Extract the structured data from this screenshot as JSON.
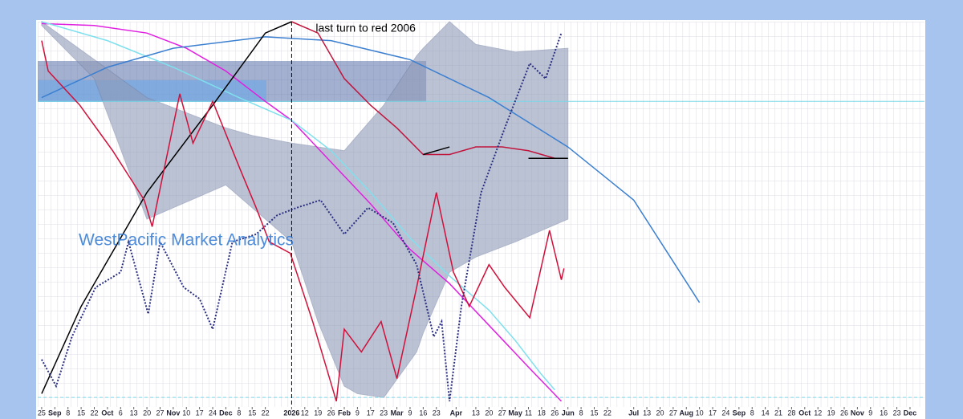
{
  "chart_data": {
    "type": "line",
    "watermark": "WestPacific Market Analytics",
    "annotation": {
      "text": "last turn to red 2006",
      "x": 19
    },
    "xlim": [
      -0.3,
      67.1
    ],
    "ylim": [
      -1.5,
      100
    ],
    "levels": [
      {
        "value": 79,
        "color": "#7ad8e8",
        "style": "solid"
      },
      {
        "value": 1,
        "color": "#7ad8e8",
        "style": "dashed"
      }
    ],
    "band": {
      "color": "#8f9bb8",
      "x": [
        0,
        4,
        8,
        14,
        16,
        19,
        21,
        23,
        24,
        26,
        28.5,
        29,
        31,
        33,
        36,
        40
      ],
      "upper": [
        100,
        90,
        80,
        72,
        70,
        68,
        67,
        66,
        70,
        78,
        91,
        93,
        100,
        94,
        92,
        93
      ],
      "lower": [
        99,
        85,
        48,
        57,
        51,
        42,
        21,
        4,
        2,
        1,
        13,
        18,
        34,
        38,
        42,
        48
      ]
    },
    "series": [
      {
        "color": "#e020e0",
        "style": "solid",
        "x": [
          0,
          4,
          8,
          11,
          14,
          17,
          19,
          22,
          25,
          28,
          31,
          34,
          37,
          39.5
        ],
        "values": [
          99.5,
          99,
          97,
          93,
          87,
          79,
          74,
          63,
          52,
          40,
          31,
          20,
          9,
          0
        ]
      },
      {
        "color": "#7fe0ee",
        "style": "solid",
        "x": [
          0,
          5,
          10,
          15,
          19,
          22,
          25,
          28,
          31,
          34,
          36,
          38,
          39
        ],
        "values": [
          100,
          95,
          88,
          80,
          74,
          66,
          55,
          43,
          33,
          24,
          16,
          7,
          3
        ]
      },
      {
        "color": "#3b7fd0",
        "style": "solid",
        "x": [
          0,
          5,
          10,
          17,
          22,
          28,
          34,
          40,
          45,
          50
        ],
        "values": [
          80,
          88,
          93,
          96,
          95,
          90,
          80,
          67,
          53,
          26
        ]
      },
      {
        "color": "#c0143c",
        "style": "solid",
        "x": [
          19,
          21,
          23,
          25,
          27,
          29,
          31,
          33,
          35,
          37,
          39,
          40
        ],
        "values": [
          100,
          97,
          85,
          78,
          72,
          65,
          65,
          67,
          67,
          66,
          64,
          64
        ]
      },
      {
        "color": "#000000",
        "style": "solid",
        "x": [
          0,
          3,
          8,
          13,
          17,
          19,
          24,
          29,
          30,
          31,
          35,
          37,
          39,
          40
        ],
        "values": [
          2,
          25,
          55,
          78,
          97,
          100,
          null,
          65,
          66,
          67,
          null,
          64,
          64,
          64
        ]
      },
      {
        "color": "#d0103a",
        "style": "solid",
        "x": [
          0,
          0.5,
          2.9,
          5.4,
          7.8,
          8.4,
          10.5,
          11.5,
          13,
          15.1,
          16.3,
          17.3,
          18.9,
          20.6,
          22.4,
          23,
          24.3,
          25.8,
          27,
          28.5,
          30,
          31.3,
          32.5,
          34,
          35.2,
          37.1,
          38.6,
          39.5,
          39.7
        ],
        "values": [
          95,
          87,
          78,
          66,
          53,
          46,
          81,
          68,
          79,
          61,
          51,
          42,
          39,
          21,
          0,
          19,
          13,
          21,
          6,
          30,
          55,
          34,
          25,
          36,
          30,
          22,
          45,
          32,
          35
        ]
      },
      {
        "color": "#2a2f80",
        "style": "dotted",
        "x": [
          0,
          1.1,
          2.3,
          4.1,
          6,
          6.6,
          8.1,
          9,
          10.8,
          12,
          13,
          14.5,
          16.3,
          17.9,
          19.4,
          21.2,
          23,
          24.8,
          26.7,
          28.5,
          29.8,
          30.4,
          31,
          31.9,
          33.4,
          35.2,
          37.1,
          38.3,
          39.5
        ],
        "values": [
          11,
          4,
          17,
          30,
          34,
          42,
          23,
          42,
          30,
          27,
          19,
          42,
          44,
          49,
          51,
          53,
          44,
          51,
          47,
          36,
          17,
          21,
          0,
          25,
          55,
          72,
          89,
          85,
          97
        ]
      }
    ],
    "xticks": [
      {
        "value": 0,
        "label": "25"
      },
      {
        "value": 1,
        "label": "Sep"
      },
      {
        "value": 2,
        "label": "8"
      },
      {
        "value": 3,
        "label": "15"
      },
      {
        "value": 4,
        "label": "22"
      },
      {
        "value": 5,
        "label": "Oct"
      },
      {
        "value": 6,
        "label": "6"
      },
      {
        "value": 7,
        "label": "13"
      },
      {
        "value": 8,
        "label": "20"
      },
      {
        "value": 9,
        "label": "27"
      },
      {
        "value": 10,
        "label": "Nov"
      },
      {
        "value": 11,
        "label": "10"
      },
      {
        "value": 12,
        "label": "17"
      },
      {
        "value": 13,
        "label": "24"
      },
      {
        "value": 14,
        "label": "Dec"
      },
      {
        "value": 15,
        "label": "8"
      },
      {
        "value": 16,
        "label": "15"
      },
      {
        "value": 17,
        "label": "22"
      },
      {
        "value": 19,
        "label": "2026"
      },
      {
        "value": 20,
        "label": "12"
      },
      {
        "value": 21,
        "label": "19"
      },
      {
        "value": 22,
        "label": "26"
      },
      {
        "value": 23,
        "label": "Feb"
      },
      {
        "value": 24,
        "label": "9"
      },
      {
        "value": 25,
        "label": "17"
      },
      {
        "value": 26,
        "label": "23"
      },
      {
        "value": 27,
        "label": "Mar"
      },
      {
        "value": 28,
        "label": "9"
      },
      {
        "value": 29,
        "label": "16"
      },
      {
        "value": 30,
        "label": "23"
      },
      {
        "value": 31.5,
        "label": "Apr"
      },
      {
        "value": 33,
        "label": "13"
      },
      {
        "value": 34,
        "label": "20"
      },
      {
        "value": 35,
        "label": "27"
      },
      {
        "value": 36,
        "label": "May"
      },
      {
        "value": 37,
        "label": "11"
      },
      {
        "value": 38,
        "label": "18"
      },
      {
        "value": 39,
        "label": "26"
      },
      {
        "value": 40,
        "label": "Jun"
      },
      {
        "value": 41,
        "label": "8"
      },
      {
        "value": 42,
        "label": "15"
      },
      {
        "value": 43,
        "label": "22"
      },
      {
        "value": 45,
        "label": "Jul"
      },
      {
        "value": 46,
        "label": "13"
      },
      {
        "value": 47,
        "label": "20"
      },
      {
        "value": 48,
        "label": "27"
      },
      {
        "value": 49,
        "label": "Aug"
      },
      {
        "value": 50,
        "label": "10"
      },
      {
        "value": 51,
        "label": "17"
      },
      {
        "value": 52,
        "label": "24"
      },
      {
        "value": 53,
        "label": "Sep"
      },
      {
        "value": 54,
        "label": "8"
      },
      {
        "value": 55,
        "label": "14"
      },
      {
        "value": 56,
        "label": "21"
      },
      {
        "value": 57,
        "label": "28"
      },
      {
        "value": 58,
        "label": "Oct"
      },
      {
        "value": 59,
        "label": "12"
      },
      {
        "value": 60,
        "label": "19"
      },
      {
        "value": 61,
        "label": "26"
      },
      {
        "value": 62,
        "label": "Nov"
      },
      {
        "value": 63,
        "label": "9"
      },
      {
        "value": 64,
        "label": "16"
      },
      {
        "value": 65,
        "label": "23"
      },
      {
        "value": 66,
        "label": "Dec"
      }
    ]
  }
}
